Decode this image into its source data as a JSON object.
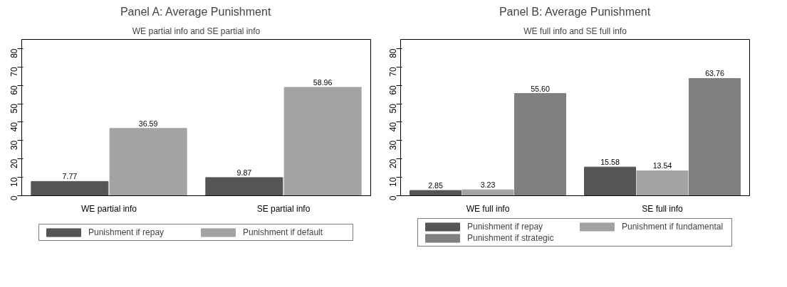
{
  "chart_data": [
    {
      "type": "bar",
      "title": "Panel A: Average Punishment",
      "subtitle": "WE partial info and SE partial info",
      "categories": [
        "WE partial info",
        "SE partial info"
      ],
      "series": [
        {
          "name": "Punishment if repay",
          "color": "#555555",
          "values": [
            7.77,
            9.87
          ],
          "value_labels": [
            "7.77",
            "9.87"
          ]
        },
        {
          "name": "Punishment if default",
          "color": "#a3a3a3",
          "values": [
            36.59,
            58.96
          ],
          "value_labels": [
            "36.59",
            "58.96"
          ]
        }
      ],
      "ylim": [
        0,
        85
      ],
      "yticks": [
        0,
        10,
        20,
        30,
        40,
        50,
        60,
        70,
        80
      ],
      "grid": false,
      "legend": "bottom"
    },
    {
      "type": "bar",
      "title": "Panel B: Average Punishment",
      "subtitle": "WE full info and SE full info",
      "categories": [
        "WE full info",
        "SE full info"
      ],
      "series": [
        {
          "name": "Punishment if repay",
          "color": "#555555",
          "values": [
            2.85,
            15.58
          ],
          "value_labels": [
            "2.85",
            "15.58"
          ]
        },
        {
          "name": "Punishment if fundamental",
          "color": "#a3a3a3",
          "values": [
            3.23,
            13.54
          ],
          "value_labels": [
            "3.23",
            "13.54"
          ]
        },
        {
          "name": "Punishment if strategic",
          "color": "#808080",
          "values": [
            55.6,
            63.76
          ],
          "value_labels": [
            "55.60",
            "63.76"
          ]
        }
      ],
      "ylim": [
        0,
        85
      ],
      "yticks": [
        0,
        10,
        20,
        30,
        40,
        50,
        60,
        70,
        80
      ],
      "grid": false,
      "legend": "bottom"
    }
  ]
}
